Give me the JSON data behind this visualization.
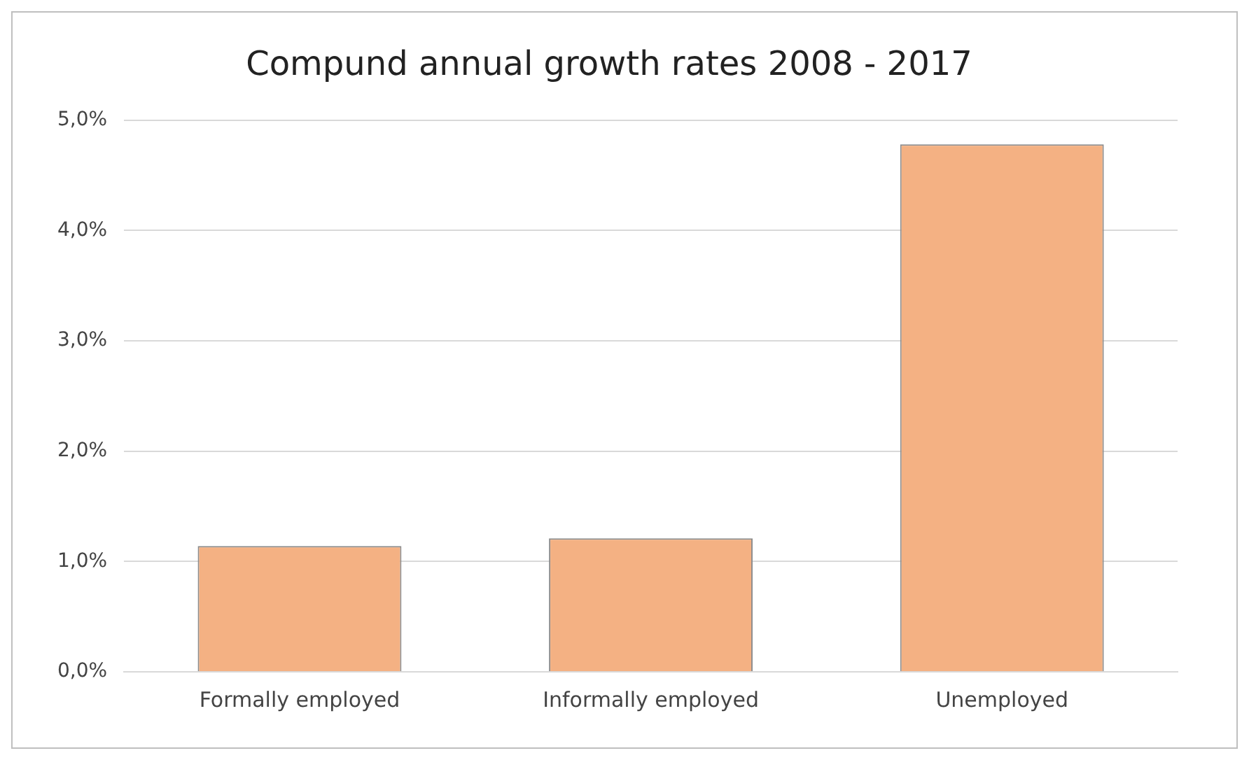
{
  "chart_data": {
    "type": "bar",
    "title": "Compund annual growth rates 2008 - 2017",
    "categories": [
      "Formally employed",
      "Informally employed",
      "Unemployed"
    ],
    "values": [
      1.14,
      1.21,
      4.78
    ],
    "color": "#f4b183",
    "ylim": [
      0,
      5
    ],
    "yticks": [
      {
        "value": 0,
        "label": "0,0%"
      },
      {
        "value": 1,
        "label": "1,0%"
      },
      {
        "value": 2,
        "label": "2,0%"
      },
      {
        "value": 3,
        "label": "3,0%"
      },
      {
        "value": 4,
        "label": "4,0%"
      },
      {
        "value": 5,
        "label": "5,0%"
      }
    ],
    "grid": "y",
    "legend": false
  }
}
